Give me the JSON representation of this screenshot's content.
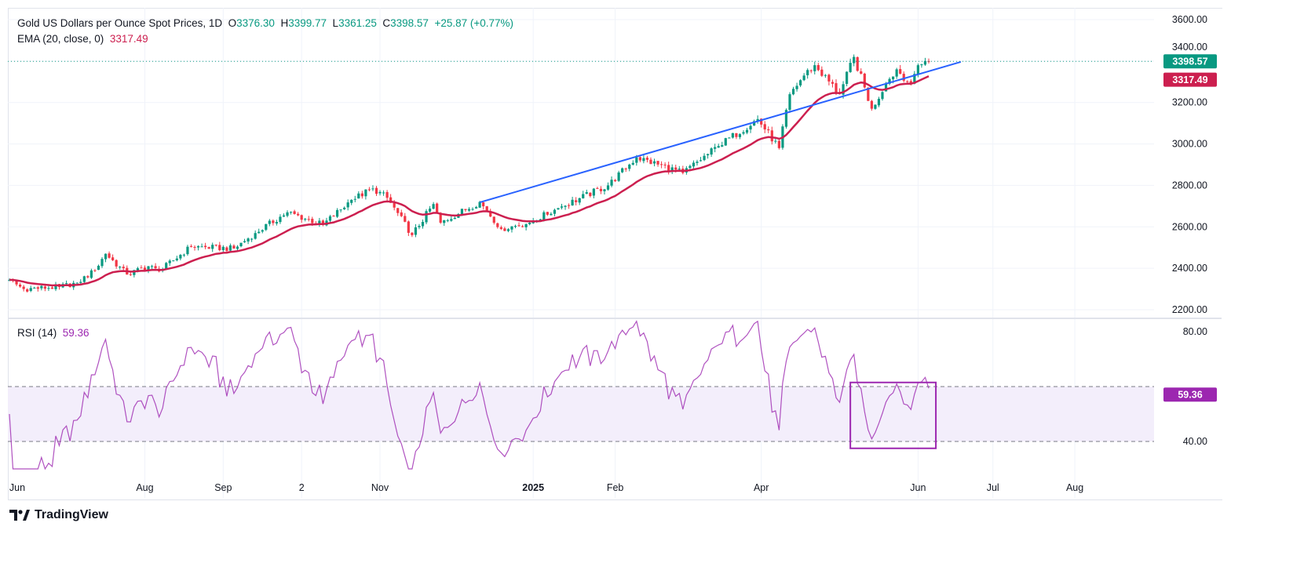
{
  "header": {
    "symbol": "Gold US Dollars per Ounce Spot Prices, 1D",
    "open_label": "O",
    "open": "3376.30",
    "high_label": "H",
    "high": "3399.77",
    "low_label": "L",
    "low": "3361.25",
    "close_label": "C",
    "close": "3398.57",
    "change": "+25.87 (+0.77%)"
  },
  "ema": {
    "label": "EMA (20, close, 0)",
    "value": "3317.49"
  },
  "rsi": {
    "label": "RSI (14)",
    "value": "59.36"
  },
  "price_labels": {
    "last": "3398.57",
    "ema": "3317.49"
  },
  "brand": {
    "name": "TradingView"
  },
  "colors": {
    "up": "#089981",
    "down": "#f23645",
    "ema": "#cc1f4f",
    "trend": "#2962ff",
    "rsi": "#9c27b0",
    "rsi_band": "#f3eefb"
  },
  "chart_data": [
    {
      "type": "candlestick",
      "title": "Gold US Dollars per Ounce Spot Prices, 1D",
      "ylim": [
        2150,
        3650
      ],
      "yticks": [
        "3600.00",
        "3400.00",
        "3200.00",
        "3000.00",
        "2800.00",
        "2600.00",
        "2400.00",
        "2200.00"
      ],
      "xticks": [
        "Jun",
        "Aug",
        "Sep",
        "2",
        "Nov",
        "2025",
        "Feb",
        "Apr",
        "Jun",
        "Jul",
        "Aug"
      ],
      "xtick_dates": [
        "2024-06-03",
        "2024-08-01",
        "2024-09-02",
        "2024-10-02",
        "2024-11-01",
        "2025-01-01",
        "2025-02-03",
        "2025-04-01",
        "2025-06-02",
        "2025-07-01",
        "2025-08-01"
      ],
      "approx_closes": [
        [
          "2024-06-10",
          2344
        ],
        [
          "2024-06-14",
          2300
        ],
        [
          "2024-06-28",
          2310
        ],
        [
          "2024-07-05",
          2330
        ],
        [
          "2024-07-12",
          2390
        ],
        [
          "2024-07-17",
          2470
        ],
        [
          "2024-07-25",
          2370
        ],
        [
          "2024-08-02",
          2410
        ],
        [
          "2024-08-07",
          2385
        ],
        [
          "2024-08-20",
          2505
        ],
        [
          "2024-09-05",
          2495
        ],
        [
          "2024-09-13",
          2570
        ],
        [
          "2024-09-26",
          2670
        ],
        [
          "2024-10-10",
          2610
        ],
        [
          "2024-10-22",
          2730
        ],
        [
          "2024-10-30",
          2785
        ],
        [
          "2024-11-05",
          2740
        ],
        [
          "2024-11-14",
          2560
        ],
        [
          "2024-11-22",
          2710
        ],
        [
          "2024-11-26",
          2620
        ],
        [
          "2024-12-11",
          2720
        ],
        [
          "2024-12-19",
          2590
        ],
        [
          "2024-12-31",
          2620
        ],
        [
          "2025-01-10",
          2690
        ],
        [
          "2025-01-30",
          2800
        ],
        [
          "2025-02-11",
          2935
        ],
        [
          "2025-02-28",
          2860
        ],
        [
          "2025-03-14",
          2990
        ],
        [
          "2025-03-31",
          3120
        ],
        [
          "2025-04-08",
          2980
        ],
        [
          "2025-04-11",
          3240
        ],
        [
          "2025-04-17",
          3330
        ],
        [
          "2025-04-22",
          3380
        ],
        [
          "2025-05-01",
          3240
        ],
        [
          "2025-05-07",
          3420
        ],
        [
          "2025-05-14",
          3170
        ],
        [
          "2025-05-20",
          3290
        ],
        [
          "2025-05-23",
          3360
        ],
        [
          "2025-05-29",
          3290
        ],
        [
          "2025-06-02",
          3380
        ],
        [
          "2025-06-05",
          3398.57
        ]
      ],
      "overlays": {
        "ema_period": 20,
        "trendline": {
          "from": [
            "2024-12-11",
            2718
          ],
          "to": [
            "2025-06-18",
            3396
          ]
        }
      }
    },
    {
      "type": "line",
      "title": "RSI (14)",
      "ylim": [
        28,
        85
      ],
      "yticks": [
        "80.00",
        "40.00"
      ],
      "band": [
        40,
        60
      ],
      "last": 59.36,
      "highlight_box": {
        "from": "2025-05-06",
        "to": "2025-06-09",
        "y": [
          37.5,
          61.5
        ]
      }
    }
  ]
}
